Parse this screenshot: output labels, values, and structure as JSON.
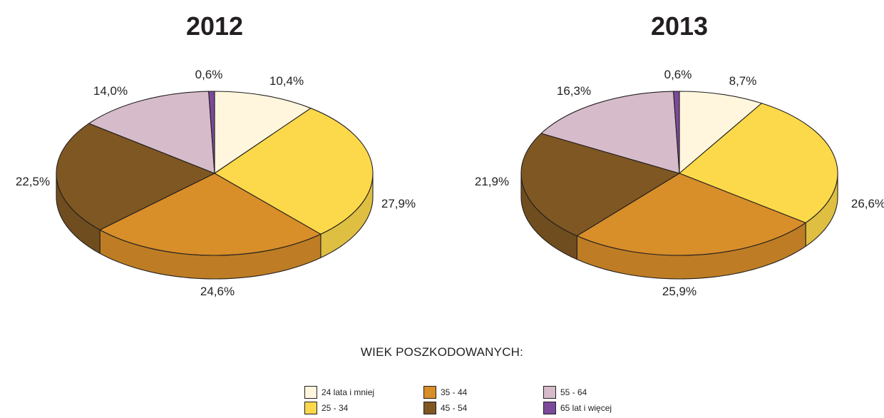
{
  "legend_heading": "WIEK POSZKODOWANYCH:",
  "legend": [
    {
      "label": "24 lata i mniej",
      "color": "#fff6dd"
    },
    {
      "label": "25 - 34",
      "color": "#fcd94a"
    },
    {
      "label": "35 - 44",
      "color": "#d88e29"
    },
    {
      "label": "45 - 54",
      "color": "#7f5722"
    },
    {
      "label": "55 - 64",
      "color": "#d6bccb"
    },
    {
      "label": "65 lat i więcej",
      "color": "#7b4a9b"
    }
  ],
  "chart_data": [
    {
      "type": "pie",
      "title": "2012",
      "categories": [
        "24 lata i mniej",
        "25 - 34",
        "35 - 44",
        "45 - 54",
        "55 - 64",
        "65 lat i więcej"
      ],
      "values": [
        10.4,
        27.9,
        24.6,
        22.5,
        14.0,
        0.6
      ],
      "labels": [
        "10,4%",
        "27,9%",
        "24,6%",
        "22,5%",
        "14,0%",
        "0,6%"
      ],
      "style": "3d"
    },
    {
      "type": "pie",
      "title": "2013",
      "categories": [
        "24 lata i mniej",
        "25 - 34",
        "35 - 44",
        "45 - 54",
        "55 - 64",
        "65 lat i więcej"
      ],
      "values": [
        8.7,
        26.6,
        25.9,
        21.9,
        16.3,
        0.6
      ],
      "labels": [
        "8,7%",
        "26,6%",
        "25,9%",
        "21,9%",
        "16,3%",
        "0,6%"
      ],
      "style": "3d"
    }
  ]
}
